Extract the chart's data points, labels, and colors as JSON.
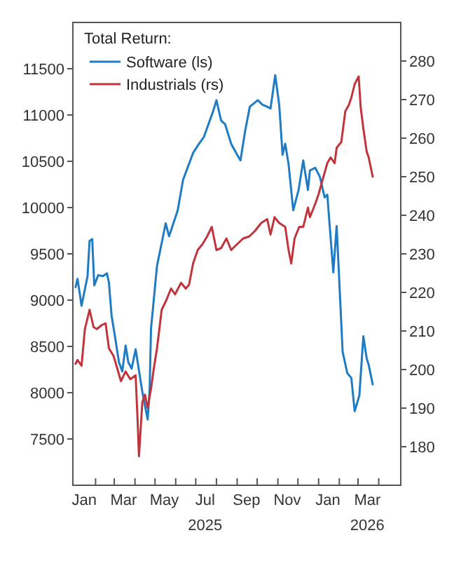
{
  "chart_data": {
    "type": "line",
    "legend_title": "Total Return:",
    "legend": "top left",
    "grid": false,
    "line_style": "solid",
    "marker": "none",
    "xlim": [
      "2024-12-29",
      "2026-05-04"
    ],
    "xticks": [
      {
        "value": "2025-01-15",
        "label": "Jan"
      },
      {
        "value": "2025-03-15",
        "label": "Mar"
      },
      {
        "value": "2025-05-15",
        "label": "May"
      },
      {
        "value": "2025-07-15",
        "label": "Jul\n2025"
      },
      {
        "value": "2025-09-15",
        "label": "Sep"
      },
      {
        "value": "2025-11-15",
        "label": "Nov"
      },
      {
        "value": "2026-01-15",
        "label": "Jan"
      },
      {
        "value": "2026-03-15",
        "label": "Mar\n2026"
      },
      {
        "value": "2025-02-01",
        "label": null
      },
      {
        "value": "2025-03-01",
        "label": null
      },
      {
        "value": "2025-04-01",
        "label": null
      },
      {
        "value": "2025-05-01",
        "label": null
      },
      {
        "value": "2025-06-01",
        "label": null
      },
      {
        "value": "2025-07-01",
        "label": null
      },
      {
        "value": "2025-08-01",
        "label": null
      },
      {
        "value": "2025-09-01",
        "label": null
      },
      {
        "value": "2025-10-01",
        "label": null
      },
      {
        "value": "2025-11-01",
        "label": null
      },
      {
        "value": "2025-12-01",
        "label": null
      },
      {
        "value": "2026-01-01",
        "label": null
      },
      {
        "value": "2026-02-01",
        "label": null
      },
      {
        "value": "2026-03-01",
        "label": null
      },
      {
        "value": "2026-04-01",
        "label": null
      }
    ],
    "ylim": [
      7000,
      12000
    ],
    "yticks": [
      7500,
      8000,
      8500,
      9000,
      9500,
      10000,
      10500,
      11000,
      11500
    ],
    "y2lim": [
      170,
      290
    ],
    "y2ticks": [
      180,
      190,
      200,
      210,
      220,
      230,
      240,
      250,
      260,
      270,
      280
    ],
    "series": [
      {
        "name": "Software (ls)",
        "color": "#1f7cc4",
        "axis": "y",
        "x": [
          "2025-01-02",
          "2025-01-05",
          "2025-01-11",
          "2025-01-20",
          "2025-01-23",
          "2025-01-27",
          "2025-01-30",
          "2025-02-05",
          "2025-02-12",
          "2025-02-18",
          "2025-02-21",
          "2025-02-25",
          "2025-03-02",
          "2025-03-08",
          "2025-03-13",
          "2025-03-18",
          "2025-03-22",
          "2025-03-27",
          "2025-04-02",
          "2025-04-12",
          "2025-04-20",
          "2025-04-23",
          "2025-04-25",
          "2025-05-04",
          "2025-05-17",
          "2025-05-22",
          "2025-06-04",
          "2025-06-12",
          "2025-06-27",
          "2025-07-06",
          "2025-07-13",
          "2025-07-27",
          "2025-08-01",
          "2025-08-08",
          "2025-08-14",
          "2025-08-23",
          "2025-09-01",
          "2025-09-06",
          "2025-09-13",
          "2025-09-20",
          "2025-10-02",
          "2025-10-09",
          "2025-10-16",
          "2025-10-21",
          "2025-10-28",
          "2025-11-03",
          "2025-11-08",
          "2025-11-12",
          "2025-11-17",
          "2025-11-24",
          "2025-12-02",
          "2025-12-09",
          "2025-12-16",
          "2025-12-19",
          "2025-12-27",
          "2026-01-03",
          "2026-01-10",
          "2026-01-14",
          "2026-01-23",
          "2026-01-28",
          "2026-02-06",
          "2026-02-13",
          "2026-02-19",
          "2026-02-24",
          "2026-03-03",
          "2026-03-09",
          "2026-03-14",
          "2026-03-17",
          "2026-03-23"
        ],
        "values": [
          9140,
          9230,
          8940,
          9260,
          9640,
          9660,
          9160,
          9270,
          9260,
          9290,
          9190,
          8830,
          8610,
          8330,
          8230,
          8510,
          8330,
          8260,
          8470,
          8010,
          7710,
          8040,
          8690,
          9370,
          9830,
          9690,
          9970,
          10300,
          10590,
          10690,
          10760,
          11040,
          11160,
          10940,
          10900,
          10690,
          10570,
          10510,
          10830,
          11090,
          11160,
          11110,
          11090,
          11070,
          11430,
          11110,
          10570,
          10690,
          10470,
          9970,
          10190,
          10510,
          10190,
          10400,
          10430,
          10330,
          10110,
          10140,
          9300,
          9800,
          8440,
          8210,
          8160,
          7800,
          7970,
          8610,
          8370,
          8300,
          8090
        ]
      },
      {
        "name": "Industrials (rs)",
        "color": "#c0343c",
        "axis": "y2",
        "x": [
          "2025-01-02",
          "2025-01-05",
          "2025-01-11",
          "2025-01-16",
          "2025-01-23",
          "2025-01-29",
          "2025-02-03",
          "2025-02-10",
          "2025-02-16",
          "2025-02-21",
          "2025-02-28",
          "2025-03-06",
          "2025-03-11",
          "2025-03-18",
          "2025-03-25",
          "2025-04-02",
          "2025-04-05",
          "2025-04-07",
          "2025-04-12",
          "2025-04-16",
          "2025-04-20",
          "2025-04-25",
          "2025-04-29",
          "2025-05-04",
          "2025-05-11",
          "2025-05-18",
          "2025-05-25",
          "2025-05-31",
          "2025-06-09",
          "2025-06-16",
          "2025-06-21",
          "2025-06-27",
          "2025-07-04",
          "2025-07-11",
          "2025-07-18",
          "2025-07-25",
          "2025-08-01",
          "2025-08-08",
          "2025-08-16",
          "2025-08-23",
          "2025-09-01",
          "2025-09-10",
          "2025-09-19",
          "2025-09-28",
          "2025-10-07",
          "2025-10-16",
          "2025-10-21",
          "2025-10-27",
          "2025-11-03",
          "2025-11-12",
          "2025-11-17",
          "2025-11-21",
          "2025-11-26",
          "2025-12-03",
          "2025-12-09",
          "2025-12-16",
          "2025-12-19",
          "2025-12-27",
          "2026-01-01",
          "2026-01-05",
          "2026-01-14",
          "2026-01-19",
          "2026-01-25",
          "2026-01-28",
          "2026-02-04",
          "2026-02-10",
          "2026-02-15",
          "2026-02-19",
          "2026-02-24",
          "2026-03-02",
          "2026-03-05",
          "2026-03-09",
          "2026-03-14",
          "2026-03-17",
          "2026-03-23"
        ],
        "values": [
          201.5,
          202.5,
          201,
          210.5,
          215.5,
          211,
          210.5,
          211.5,
          212,
          205.5,
          203.5,
          200,
          197,
          199.5,
          197.5,
          198.5,
          186.5,
          177.5,
          191.5,
          193.5,
          190,
          195,
          200,
          205.5,
          215.5,
          218,
          221,
          219.5,
          222.5,
          221,
          222,
          227.5,
          231,
          232.5,
          234.5,
          237,
          231,
          231.5,
          234,
          231,
          232.5,
          234,
          234.5,
          236,
          238,
          239,
          235,
          239.5,
          238,
          237,
          231,
          227.5,
          234,
          237,
          237,
          242,
          239.5,
          243,
          245.5,
          248,
          253.5,
          255,
          253.5,
          257.5,
          259,
          267,
          268.5,
          270.5,
          274,
          276,
          268,
          262.5,
          256.5,
          255,
          250
        ]
      }
    ]
  }
}
